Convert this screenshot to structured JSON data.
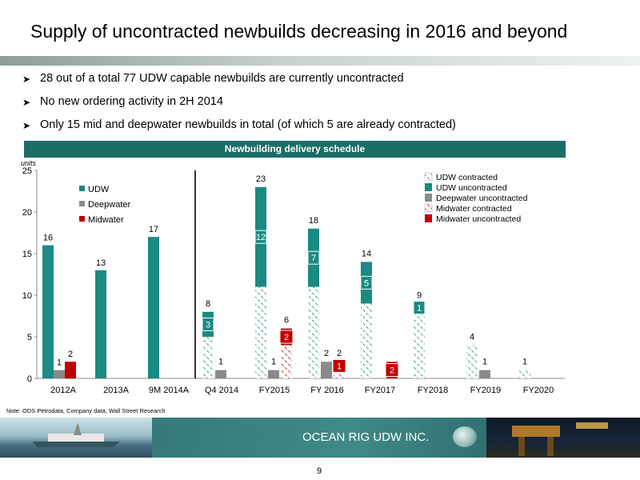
{
  "title": "Supply of uncontracted newbuilds decreasing in 2016 and beyond",
  "bullets": [
    "28 out of a total 77 UDW capable newbuilds are currently uncontracted",
    "No new ordering activity in 2H 2014",
    "Only 15  mid and deepwater newbuilds in total (of which 5 are already contracted)"
  ],
  "chart_header": "Newbuilding delivery schedule",
  "note": "Note: ODS Petrodata, Company data, Wall Street Research",
  "company": "OCEAN RIG UDW INC.",
  "page_number": "9",
  "colors": {
    "udw": "#1a8a82",
    "deepwater": "#8a8a8a",
    "midwater": "#c00000",
    "header": "#1b6e66"
  },
  "chart_data": {
    "type": "bar",
    "title": "",
    "ylabel": "units",
    "ylim": [
      0,
      25
    ],
    "yticks": [
      "0",
      "5",
      "10",
      "15",
      "20",
      "25"
    ],
    "left_legend": [
      "UDW",
      "Deepwater",
      "Midwater"
    ],
    "right_legend": [
      "UDW contracted",
      "UDW uncontracted",
      "Deepwater uncontracted",
      "Midwater contracted",
      "Midwater uncontracted"
    ],
    "historical": [
      {
        "label": "2012A",
        "udw": 16,
        "deepwater": 1,
        "midwater": 2
      },
      {
        "label": "2013A",
        "udw": 13,
        "deepwater": 0,
        "midwater": 0
      },
      {
        "label": "9M 2014A",
        "udw": 17,
        "deepwater": 0,
        "midwater": 0
      }
    ],
    "forecast": [
      {
        "label": "Q4 2014",
        "udw_contracted": 5,
        "udw_uncontracted": 3,
        "udw_total": 8,
        "deep_uncontracted": 1,
        "mid_contracted": 0,
        "mid_uncontracted": 0,
        "mid_total": 0
      },
      {
        "label": "FY2015",
        "udw_contracted": 11,
        "udw_uncontracted": 12,
        "udw_total": 23,
        "deep_uncontracted": 1,
        "mid_contracted": 4,
        "mid_uncontracted": 2,
        "mid_total": 6
      },
      {
        "label": "FY 2016",
        "udw_contracted": 11,
        "udw_uncontracted": 7,
        "udw_total": 18,
        "deep_uncontracted": 2,
        "mid_contracted": 1,
        "mid_uncontracted": 1,
        "mid_total": 2
      },
      {
        "label": "FY2017",
        "udw_contracted": 9,
        "udw_uncontracted": 5,
        "udw_total": 14,
        "deep_uncontracted": 0,
        "mid_contracted": 0,
        "mid_uncontracted": 2,
        "mid_total": 2
      },
      {
        "label": "FY2018",
        "udw_contracted": 8,
        "udw_uncontracted": 1,
        "udw_total": 9,
        "deep_uncontracted": 0,
        "mid_contracted": 0,
        "mid_uncontracted": 0,
        "mid_total": 0
      },
      {
        "label": "FY2019",
        "udw_contracted": 4,
        "udw_uncontracted": 0,
        "udw_total": 4,
        "deep_uncontracted": 1,
        "mid_contracted": 0,
        "mid_uncontracted": 0,
        "mid_total": 0
      },
      {
        "label": "FY2020",
        "udw_contracted": 1,
        "udw_uncontracted": 0,
        "udw_total": 1,
        "deep_uncontracted": 0,
        "mid_contracted": 0,
        "mid_uncontracted": 0,
        "mid_total": 0
      }
    ],
    "data_labels": [
      {
        "cat": 0,
        "series": "udw",
        "text": "16"
      },
      {
        "cat": 0,
        "series": "deepwater",
        "text": "1"
      },
      {
        "cat": 0,
        "series": "midwater",
        "text": "2"
      },
      {
        "cat": 1,
        "series": "udw",
        "text": "13"
      },
      {
        "cat": 2,
        "series": "udw",
        "text": "17"
      },
      {
        "cat": 3,
        "series": "udw_total",
        "text": "8"
      },
      {
        "cat": 3,
        "series": "udw_uncontracted",
        "text": "3"
      },
      {
        "cat": 3,
        "series": "deep_uncontracted",
        "text": "1"
      },
      {
        "cat": 4,
        "series": "udw_total",
        "text": "23"
      },
      {
        "cat": 4,
        "series": "udw_uncontracted",
        "text": "12"
      },
      {
        "cat": 4,
        "series": "deep_uncontracted",
        "text": "1"
      },
      {
        "cat": 4,
        "series": "mid_total",
        "text": "6"
      },
      {
        "cat": 4,
        "series": "mid_uncontracted",
        "text": "2"
      },
      {
        "cat": 5,
        "series": "udw_total",
        "text": "18"
      },
      {
        "cat": 5,
        "series": "udw_uncontracted",
        "text": "7"
      },
      {
        "cat": 5,
        "series": "deep_uncontracted",
        "text": "2"
      },
      {
        "cat": 5,
        "series": "mid_total",
        "text": "2"
      },
      {
        "cat": 5,
        "series": "mid_uncontracted",
        "text": "1"
      },
      {
        "cat": 6,
        "series": "udw_total",
        "text": "14"
      },
      {
        "cat": 6,
        "series": "udw_uncontracted",
        "text": "5"
      },
      {
        "cat": 6,
        "series": "mid_uncontracted",
        "text": "2"
      },
      {
        "cat": 7,
        "series": "udw_total",
        "text": "9"
      },
      {
        "cat": 7,
        "series": "udw_uncontracted",
        "text": "1"
      },
      {
        "cat": 8,
        "series": "udw_total",
        "text": "4"
      },
      {
        "cat": 8,
        "series": "deep_uncontracted",
        "text": "1"
      },
      {
        "cat": 9,
        "series": "udw_total",
        "text": "1"
      }
    ]
  }
}
